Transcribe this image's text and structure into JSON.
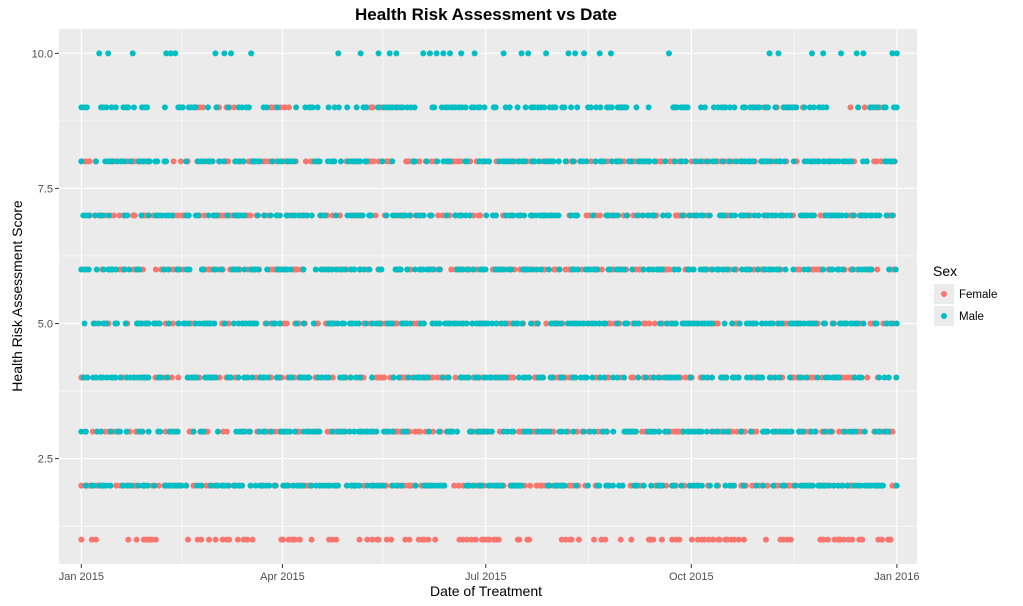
{
  "chart_data": {
    "type": "scatter",
    "title": "Health Risk Assessment vs Date",
    "xlabel": "Date of Treatment",
    "ylabel": "Health Risk Assessment Score",
    "xlim": [
      "2014-12-22",
      "2016-01-10"
    ],
    "ylim": [
      0.55,
      10.45
    ],
    "x_ticks": [
      {
        "date": "2015-01-01",
        "label": "Jan 2015"
      },
      {
        "date": "2015-04-01",
        "label": "Apr 2015"
      },
      {
        "date": "2015-07-01",
        "label": "Jul 2015"
      },
      {
        "date": "2015-10-01",
        "label": "Oct 2015"
      },
      {
        "date": "2016-01-01",
        "label": "Jan 2016"
      }
    ],
    "x_minor_ticks": [
      "2015-02-15",
      "2015-05-16",
      "2015-08-16",
      "2015-11-16"
    ],
    "y_ticks": [
      2.5,
      5.0,
      7.5,
      10.0
    ],
    "y_tick_labels": [
      "2.5",
      "5.0",
      "7.5",
      "10.0"
    ],
    "y_minor_ticks": [
      1.25,
      3.75,
      6.25,
      8.75
    ],
    "grid": true,
    "legend": {
      "title": "Sex",
      "placement": "right"
    },
    "colors": {
      "Female": "#F8766D",
      "Male": "#00BFC4",
      "panel": "#EBEBEB",
      "grid": "#FFFFFF"
    },
    "series": [
      {
        "name": "Female",
        "color": "#F8766D",
        "points": [
          {
            "y": 1,
            "ranges": [
              [
                "2015-01-01",
                "2015-01-12"
              ],
              [
                "2015-01-20",
                "2015-02-05"
              ],
              [
                "2015-02-14",
                "2015-03-20"
              ],
              [
                "2015-03-28",
                "2015-05-20"
              ],
              [
                "2015-05-26",
                "2015-06-10"
              ],
              [
                "2015-06-18",
                "2015-07-22"
              ],
              [
                "2015-08-04",
                "2015-09-05"
              ],
              [
                "2015-09-12",
                "2015-10-25"
              ],
              [
                "2015-11-01",
                "2015-11-18"
              ],
              [
                "2015-11-26",
                "2016-01-01"
              ]
            ]
          },
          {
            "y": 2,
            "ranges": [
              [
                "2015-01-01",
                "2016-01-01"
              ]
            ]
          },
          {
            "y": 3,
            "ranges": [
              [
                "2015-01-01",
                "2016-01-01"
              ]
            ]
          },
          {
            "y": 4,
            "ranges": [
              [
                "2015-01-01",
                "2016-01-01"
              ]
            ]
          },
          {
            "y": 5,
            "ranges": [
              [
                "2015-01-01",
                "2016-01-01"
              ]
            ]
          },
          {
            "y": 6,
            "ranges": [
              [
                "2015-01-01",
                "2016-01-01"
              ]
            ]
          },
          {
            "y": 7,
            "ranges": [
              [
                "2015-01-01",
                "2016-01-01"
              ]
            ]
          },
          {
            "y": 8,
            "ranges": [
              [
                "2015-01-01",
                "2016-01-01"
              ]
            ]
          },
          {
            "y": 9,
            "ranges": [
              [
                "2015-02-20",
                "2015-03-12"
              ],
              [
                "2015-03-25",
                "2015-04-05"
              ],
              [
                "2015-05-10",
                "2015-05-25"
              ],
              [
                "2015-08-25",
                "2015-09-01"
              ],
              [
                "2015-10-25",
                "2015-11-20"
              ],
              [
                "2015-12-10",
                "2015-12-25"
              ]
            ]
          }
        ]
      },
      {
        "name": "Male",
        "color": "#00BFC4",
        "points": [
          {
            "y": 2,
            "ranges": [
              [
                "2015-01-01",
                "2016-01-01"
              ]
            ]
          },
          {
            "y": 3,
            "ranges": [
              [
                "2015-01-01",
                "2016-01-01"
              ]
            ]
          },
          {
            "y": 4,
            "ranges": [
              [
                "2015-01-01",
                "2016-01-01"
              ]
            ]
          },
          {
            "y": 5,
            "ranges": [
              [
                "2015-01-01",
                "2016-01-01"
              ]
            ]
          },
          {
            "y": 6,
            "ranges": [
              [
                "2015-01-01",
                "2016-01-01"
              ]
            ]
          },
          {
            "y": 7,
            "ranges": [
              [
                "2015-01-01",
                "2016-01-01"
              ]
            ]
          },
          {
            "y": 8,
            "ranges": [
              [
                "2015-01-01",
                "2016-01-01"
              ]
            ]
          },
          {
            "y": 9,
            "ranges": [
              [
                "2015-01-01",
                "2015-09-12"
              ],
              [
                "2015-09-20",
                "2016-01-01"
              ]
            ]
          },
          {
            "y": 10,
            "dates": [
              "2015-01-09",
              "2015-01-13",
              "2015-01-24",
              "2015-02-08",
              "2015-02-10",
              "2015-02-12",
              "2015-03-02",
              "2015-03-06",
              "2015-03-09",
              "2015-03-18",
              "2015-04-26",
              "2015-05-06",
              "2015-05-14",
              "2015-05-19",
              "2015-05-22",
              "2015-06-03",
              "2015-06-06",
              "2015-06-09",
              "2015-06-12",
              "2015-06-15",
              "2015-06-20",
              "2015-06-26",
              "2015-07-09",
              "2015-07-17",
              "2015-07-20",
              "2015-07-28",
              "2015-08-07",
              "2015-08-10",
              "2015-08-14",
              "2015-08-21",
              "2015-08-26",
              "2015-09-21",
              "2015-11-05",
              "2015-11-09",
              "2015-11-24",
              "2015-11-29",
              "2015-12-07",
              "2015-12-14",
              "2015-12-17",
              "2015-12-30",
              "2016-01-01"
            ]
          }
        ]
      }
    ]
  }
}
